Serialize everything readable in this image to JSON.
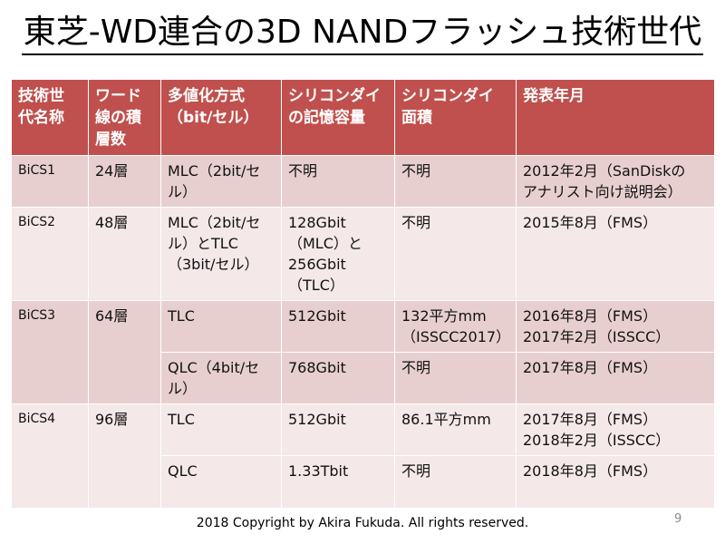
{
  "title": "東芝-WD連合の3D NANDフラッシュ技術世代",
  "table": {
    "headers": [
      [
        "技術世",
        "代名称"
      ],
      [
        "ワード",
        "線の積",
        "層数"
      ],
      [
        "多値化方式",
        "（bit/セル）"
      ],
      [
        "シリコンダイ",
        "の記憶容量"
      ],
      [
        "シリコンダイ",
        "面積"
      ],
      [
        "発表年月"
      ]
    ],
    "rows": [
      {
        "generation": "BiCS1",
        "layers": "24層",
        "method": [
          "MLC（2bit/セ",
          "ル）"
        ],
        "capacity": [
          "不明"
        ],
        "area": [
          "不明"
        ],
        "announced": [
          "2012年2月（SanDiskの",
          "アナリスト向け説明会）"
        ]
      },
      {
        "generation": "BiCS2",
        "layers": "48層",
        "method": [
          "MLC（2bit/セ",
          "ル）とTLC",
          "（3bit/セル）"
        ],
        "capacity": [
          "128Gbit",
          "（MLC）と",
          "256Gbit",
          "（TLC）"
        ],
        "area": [
          "不明"
        ],
        "announced": [
          "2015年8月（FMS）"
        ]
      },
      {
        "generation": "BiCS3",
        "layers": "64層",
        "method": [
          "TLC"
        ],
        "capacity": [
          "512Gbit"
        ],
        "area": [
          "132平方mm",
          "（ISSCC2017）"
        ],
        "announced": [
          "2016年8月（FMS）",
          "2017年2月（ISSCC）"
        ]
      },
      {
        "method": [
          "QLC（4bit/セ",
          "ル）"
        ],
        "capacity": [
          "768Gbit"
        ],
        "area": [
          "不明"
        ],
        "announced": [
          "2017年8月（FMS）"
        ]
      },
      {
        "generation": "BiCS4",
        "layers": "96層",
        "method": [
          "TLC"
        ],
        "capacity": [
          "512Gbit"
        ],
        "area": [
          "86.1平方mm"
        ],
        "announced": [
          "2017年8月（FMS）",
          "2018年2月（ISSCC）"
        ]
      },
      {
        "method": [
          "QLC"
        ],
        "capacity": [
          "1.33Tbit"
        ],
        "area": [
          "不明"
        ],
        "announced": [
          "2018年8月（FMS）"
        ]
      }
    ]
  },
  "footer": "2018 Copyright by Akira Fukuda. All rights reserved.",
  "page_number": "9",
  "colors": {
    "header_bg": "#c0504d",
    "row_dark": "#e8cfcf",
    "row_light": "#f4e8e8"
  }
}
